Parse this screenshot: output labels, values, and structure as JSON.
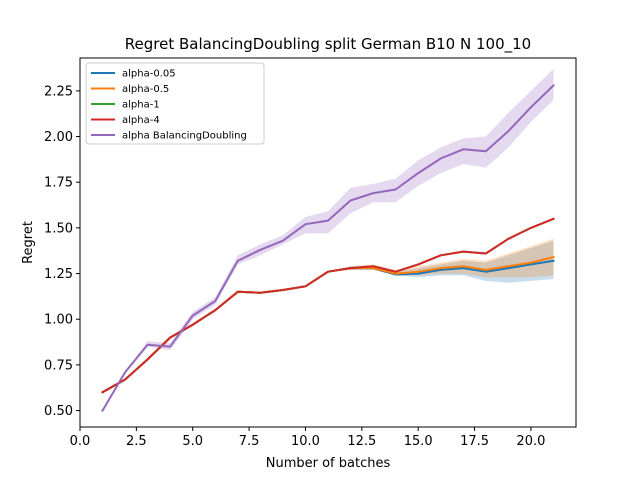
{
  "chart_data": {
    "type": "line",
    "title": "Regret BalancingDoubling split German B10 N 100_10",
    "xlabel": "Number of batches",
    "ylabel": "Regret",
    "xlim": [
      0.0,
      22.0
    ],
    "ylim": [
      0.41,
      2.43
    ],
    "xticks": [
      0.0,
      2.5,
      5.0,
      7.5,
      10.0,
      12.5,
      15.0,
      17.5,
      20.0
    ],
    "xtick_labels": [
      "0.0",
      "2.5",
      "5.0",
      "7.5",
      "10.0",
      "12.5",
      "15.0",
      "17.5",
      "20.0"
    ],
    "yticks": [
      0.5,
      0.75,
      1.0,
      1.25,
      1.5,
      1.75,
      2.0,
      2.25
    ],
    "ytick_labels": [
      "0.50",
      "0.75",
      "1.00",
      "1.25",
      "1.50",
      "1.75",
      "2.00",
      "2.25"
    ],
    "grid": false,
    "legend_position": "top-left",
    "x": [
      1,
      2,
      3,
      4,
      5,
      6,
      7,
      8,
      9,
      10,
      11,
      12,
      13,
      14,
      15,
      16,
      17,
      18,
      19,
      20,
      21
    ],
    "series": [
      {
        "name": "alpha-0.05",
        "color": "#1f77b4",
        "values": [
          0.6,
          0.67,
          0.78,
          0.9,
          0.97,
          1.05,
          1.15,
          1.145,
          1.16,
          1.18,
          1.26,
          1.28,
          1.28,
          1.245,
          1.25,
          1.27,
          1.28,
          1.26,
          1.28,
          1.3,
          1.32
        ],
        "lower": [
          0.6,
          0.67,
          0.78,
          0.9,
          0.97,
          1.05,
          1.15,
          1.145,
          1.16,
          1.18,
          1.26,
          1.27,
          1.27,
          1.24,
          1.23,
          1.24,
          1.24,
          1.21,
          1.2,
          1.21,
          1.22
        ],
        "upper": [
          0.6,
          0.67,
          0.78,
          0.9,
          0.97,
          1.05,
          1.15,
          1.145,
          1.16,
          1.18,
          1.26,
          1.29,
          1.29,
          1.26,
          1.28,
          1.3,
          1.32,
          1.31,
          1.35,
          1.39,
          1.43
        ]
      },
      {
        "name": "alpha-0.5",
        "color": "#ff7f0e",
        "values": [
          0.6,
          0.67,
          0.78,
          0.9,
          0.97,
          1.05,
          1.15,
          1.145,
          1.16,
          1.18,
          1.26,
          1.28,
          1.28,
          1.25,
          1.26,
          1.28,
          1.29,
          1.27,
          1.29,
          1.31,
          1.34
        ],
        "lower": [
          0.6,
          0.67,
          0.78,
          0.9,
          0.97,
          1.05,
          1.15,
          1.145,
          1.16,
          1.18,
          1.26,
          1.27,
          1.27,
          1.24,
          1.24,
          1.25,
          1.25,
          1.23,
          1.23,
          1.23,
          1.24
        ],
        "upper": [
          0.6,
          0.67,
          0.78,
          0.9,
          0.97,
          1.05,
          1.15,
          1.145,
          1.16,
          1.18,
          1.26,
          1.29,
          1.3,
          1.27,
          1.29,
          1.31,
          1.33,
          1.32,
          1.36,
          1.4,
          1.44
        ]
      },
      {
        "name": "alpha-1",
        "color": "#2ca02c",
        "values": [
          0.6,
          0.67,
          0.78,
          0.9,
          0.97,
          1.05,
          1.15,
          1.145,
          1.16,
          1.18,
          1.26,
          1.28,
          1.29,
          1.26,
          1.3,
          1.35,
          1.37,
          1.36,
          1.44,
          1.5,
          1.55
        ],
        "lower": [
          0.6,
          0.67,
          0.78,
          0.9,
          0.97,
          1.05,
          1.15,
          1.145,
          1.16,
          1.18,
          1.26,
          1.28,
          1.29,
          1.26,
          1.3,
          1.35,
          1.37,
          1.36,
          1.44,
          1.5,
          1.55
        ],
        "upper": [
          0.6,
          0.67,
          0.78,
          0.9,
          0.97,
          1.05,
          1.15,
          1.145,
          1.16,
          1.18,
          1.26,
          1.28,
          1.29,
          1.26,
          1.3,
          1.35,
          1.37,
          1.36,
          1.44,
          1.5,
          1.55
        ]
      },
      {
        "name": "alpha-4",
        "color": "#d62728",
        "values": [
          0.6,
          0.67,
          0.78,
          0.9,
          0.97,
          1.05,
          1.15,
          1.145,
          1.16,
          1.18,
          1.26,
          1.28,
          1.29,
          1.26,
          1.3,
          1.35,
          1.37,
          1.36,
          1.44,
          1.5,
          1.55
        ],
        "lower": [
          0.6,
          0.67,
          0.78,
          0.9,
          0.97,
          1.05,
          1.15,
          1.145,
          1.16,
          1.18,
          1.26,
          1.28,
          1.29,
          1.26,
          1.3,
          1.35,
          1.37,
          1.36,
          1.44,
          1.5,
          1.55
        ],
        "upper": [
          0.6,
          0.67,
          0.78,
          0.9,
          0.97,
          1.05,
          1.15,
          1.145,
          1.16,
          1.18,
          1.26,
          1.28,
          1.29,
          1.26,
          1.3,
          1.35,
          1.37,
          1.36,
          1.44,
          1.5,
          1.55
        ]
      },
      {
        "name": "alpha BalancingDoubling",
        "color": "#9467bd",
        "values": [
          0.5,
          0.71,
          0.86,
          0.85,
          1.02,
          1.1,
          1.32,
          1.38,
          1.43,
          1.52,
          1.54,
          1.65,
          1.69,
          1.71,
          1.8,
          1.88,
          1.93,
          1.92,
          2.03,
          2.16,
          2.28
        ],
        "lower": [
          0.5,
          0.71,
          0.85,
          0.83,
          1.0,
          1.08,
          1.3,
          1.35,
          1.41,
          1.47,
          1.47,
          1.58,
          1.64,
          1.64,
          1.73,
          1.8,
          1.85,
          1.83,
          1.94,
          2.08,
          2.2
        ],
        "upper": [
          0.5,
          0.71,
          0.88,
          0.87,
          1.04,
          1.12,
          1.35,
          1.41,
          1.46,
          1.56,
          1.59,
          1.72,
          1.74,
          1.77,
          1.87,
          1.94,
          1.99,
          2.0,
          2.13,
          2.25,
          2.37
        ]
      }
    ]
  }
}
